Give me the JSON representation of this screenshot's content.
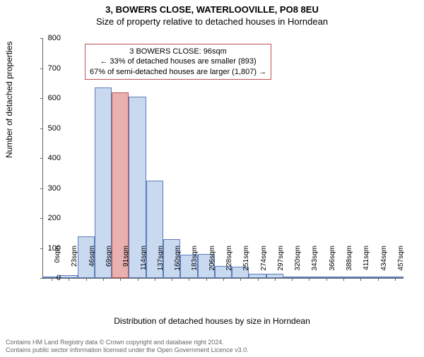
{
  "title_main": "3, BOWERS CLOSE, WATERLOOVILLE, PO8 8EU",
  "title_sub": "Size of property relative to detached houses in Horndean",
  "ylabel": "Number of detached properties",
  "xlabel": "Distribution of detached houses by size in Horndean",
  "chart": {
    "type": "histogram",
    "ylim": [
      0,
      800
    ],
    "ytick_step": 100,
    "yticks": [
      0,
      100,
      200,
      300,
      400,
      500,
      600,
      700,
      800
    ],
    "categories": [
      "0sqm",
      "23sqm",
      "46sqm",
      "69sqm",
      "91sqm",
      "114sqm",
      "137sqm",
      "160sqm",
      "183sqm",
      "206sqm",
      "228sqm",
      "251sqm",
      "274sqm",
      "297sqm",
      "320sqm",
      "343sqm",
      "366sqm",
      "388sqm",
      "411sqm",
      "434sqm",
      "457sqm"
    ],
    "values": [
      5,
      10,
      140,
      635,
      620,
      605,
      325,
      130,
      78,
      80,
      40,
      38,
      15,
      15,
      5,
      3,
      2,
      2,
      1,
      2,
      1
    ],
    "highlight_index": 4,
    "bar_color": "#c9d9f0",
    "bar_border": "#5c7db8",
    "highlight_color": "#e8b0b0",
    "highlight_border": "#c05050",
    "background_color": "#ffffff",
    "label_fontsize": 12,
    "tick_fontsize": 10,
    "bar_width_ratio": 1.0
  },
  "annotation": {
    "line1": "3 BOWERS CLOSE: 96sqm",
    "line2": "← 33% of detached houses are smaller (893)",
    "line3": "67% of semi-detached houses are larger (1,807) →",
    "border_color": "#c05050"
  },
  "footer": {
    "line1": "Contains HM Land Registry data © Crown copyright and database right 2024.",
    "line2": "Contains public sector information licensed under the Open Government Licence v3.0."
  }
}
